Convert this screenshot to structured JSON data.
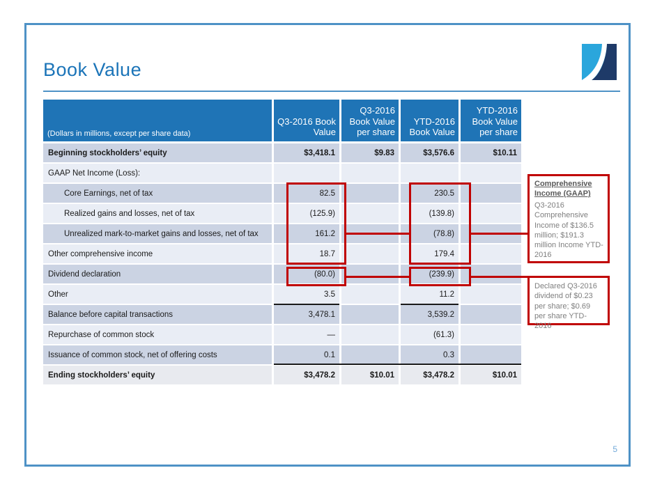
{
  "slide": {
    "title": "Book Value",
    "page_number": "5"
  },
  "table": {
    "header_note": "(Dollars in millions, except per share data)",
    "columns": [
      "Q3-2016 Book Value",
      "Q3-2016 Book Value per share",
      "YTD-2016 Book Value",
      "YTD-2016 Book Value per share"
    ],
    "rows": [
      {
        "label": "Beginning stockholders’ equity",
        "bold": true,
        "indent": false,
        "values": [
          "$3,418.1",
          "$9.83",
          "$3,576.6",
          "$10.11"
        ]
      },
      {
        "label": "GAAP Net Income (Loss):",
        "bold": false,
        "indent": false,
        "values": [
          "",
          "",
          "",
          ""
        ]
      },
      {
        "label": "Core Earnings, net of tax",
        "bold": false,
        "indent": true,
        "values": [
          "82.5",
          "",
          "230.5",
          ""
        ]
      },
      {
        "label": "Realized gains and losses, net of tax",
        "bold": false,
        "indent": true,
        "values": [
          "(125.9)",
          "",
          "(139.8)",
          ""
        ]
      },
      {
        "label": "Unrealized mark-to-market gains and losses, net of tax",
        "bold": false,
        "indent": true,
        "values": [
          "161.2",
          "",
          "(78.8)",
          ""
        ]
      },
      {
        "label": "Other comprehensive income",
        "bold": false,
        "indent": false,
        "values": [
          "18.7",
          "",
          "179.4",
          ""
        ]
      },
      {
        "label": "Dividend declaration",
        "bold": false,
        "indent": false,
        "values": [
          "(80.0)",
          "",
          "(239.9)",
          ""
        ]
      },
      {
        "label": "Other",
        "bold": false,
        "indent": false,
        "values": [
          "3.5",
          "",
          "11.2",
          ""
        ]
      },
      {
        "label": "Balance before capital transactions",
        "bold": false,
        "indent": false,
        "values": [
          "3,478.1",
          "",
          "3,539.2",
          ""
        ]
      },
      {
        "label": "Repurchase of common stock",
        "bold": false,
        "indent": false,
        "values": [
          "—",
          "",
          "(61.3)",
          ""
        ]
      },
      {
        "label": "Issuance of common stock, net of offering costs",
        "bold": false,
        "indent": false,
        "values": [
          "0.1",
          "",
          "0.3",
          ""
        ]
      },
      {
        "label": "Ending stockholders’ equity",
        "bold": true,
        "indent": false,
        "values": [
          "$3,478.2",
          "$10.01",
          "$3,478.2",
          "$10.01"
        ]
      }
    ]
  },
  "annotations": [
    {
      "title": "Comprehensive Income (GAAP)",
      "body": "Q3-2016 Comprehensive Income of $136.5 million; $191.3 million Income YTD-2016"
    },
    {
      "title": "",
      "body": "Declared Q3-2016 dividend of $0.23 per share; $0.69 per share YTD-2016"
    }
  ],
  "colors": {
    "header_blue": "#1F74B6",
    "row_dark": "#CBD3E3",
    "row_light": "#E9EDF5",
    "accent_red": "#C00000",
    "title_blue": "#1B74B8",
    "frame_blue": "#4E92C6",
    "logo_light_blue": "#2AA6DC",
    "logo_navy": "#1E3A68"
  }
}
